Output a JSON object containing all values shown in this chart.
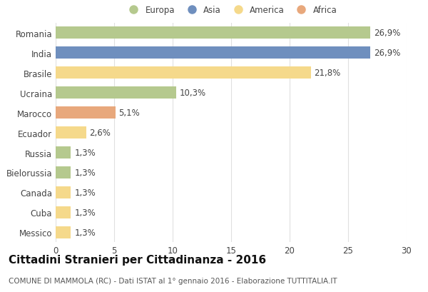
{
  "categories": [
    "Romania",
    "India",
    "Brasile",
    "Ucraina",
    "Marocco",
    "Ecuador",
    "Russia",
    "Bielorussia",
    "Canada",
    "Cuba",
    "Messico"
  ],
  "values": [
    26.9,
    26.9,
    21.8,
    10.3,
    5.1,
    2.6,
    1.3,
    1.3,
    1.3,
    1.3,
    1.3
  ],
  "labels": [
    "26,9%",
    "26,9%",
    "21,8%",
    "10,3%",
    "5,1%",
    "2,6%",
    "1,3%",
    "1,3%",
    "1,3%",
    "1,3%",
    "1,3%"
  ],
  "colors": [
    "#b5c98e",
    "#6f8fbe",
    "#f5d98b",
    "#b5c98e",
    "#e8a87c",
    "#f5d98b",
    "#b5c98e",
    "#b5c98e",
    "#f5d98b",
    "#f5d98b",
    "#f5d98b"
  ],
  "legend_labels": [
    "Europa",
    "Asia",
    "America",
    "Africa"
  ],
  "legend_colors": [
    "#b5c98e",
    "#6f8fbe",
    "#f5d98b",
    "#e8a87c"
  ],
  "title": "Cittadini Stranieri per Cittadinanza - 2016",
  "subtitle": "COMUNE DI MAMMOLA (RC) - Dati ISTAT al 1° gennaio 2016 - Elaborazione TUTTITALIA.IT",
  "xlim": [
    0,
    30
  ],
  "xticks": [
    0,
    5,
    10,
    15,
    20,
    25,
    30
  ],
  "background_color": "#ffffff",
  "grid_color": "#e0e0e0",
  "bar_height": 0.6,
  "label_fontsize": 8.5,
  "tick_fontsize": 8.5,
  "title_fontsize": 11,
  "subtitle_fontsize": 7.5
}
